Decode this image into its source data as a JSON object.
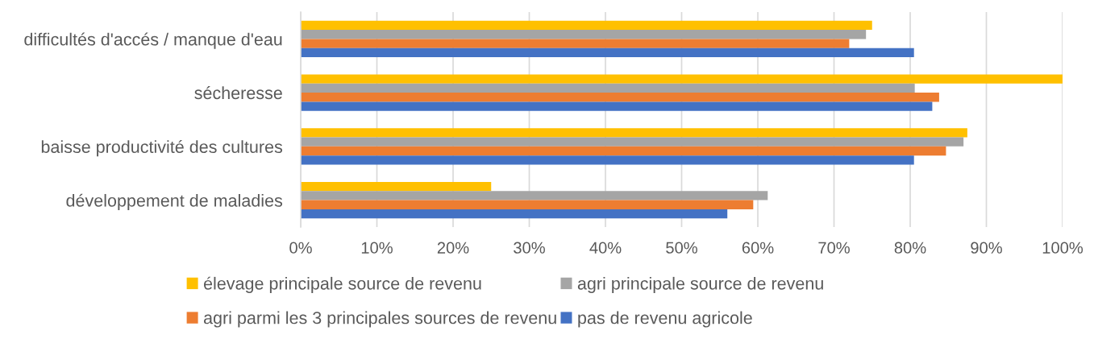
{
  "chart_data": {
    "type": "bar",
    "orientation": "horizontal",
    "categories": [
      "difficultés d'accés / manque d'eau",
      "sécheresse",
      "baisse productivité des cultures",
      "développement de maladies"
    ],
    "series": [
      {
        "name": "élevage principale source de revenu",
        "color": "#ffc000",
        "values": [
          75,
          100,
          87.5,
          25
        ]
      },
      {
        "name": "agri principale source de revenu",
        "color": "#a5a5a5",
        "values": [
          74.2,
          80.6,
          87,
          61.3
        ]
      },
      {
        "name": "agri parmi les 3 principales sources de revenu",
        "color": "#ed7d31",
        "values": [
          72,
          83.8,
          84.7,
          59.4
        ]
      },
      {
        "name": "pas de revenu agricole",
        "color": "#4472c4",
        "values": [
          80.5,
          82.9,
          80.5,
          56
        ]
      }
    ],
    "xlim": [
      0,
      100
    ],
    "xticks": [
      {
        "value": 0,
        "label": "0%"
      },
      {
        "value": 10,
        "label": "10%"
      },
      {
        "value": 20,
        "label": "20%"
      },
      {
        "value": 30,
        "label": "30%"
      },
      {
        "value": 40,
        "label": "40%"
      },
      {
        "value": 50,
        "label": "50%"
      },
      {
        "value": 60,
        "label": "60%"
      },
      {
        "value": 70,
        "label": "70%"
      },
      {
        "value": 80,
        "label": "80%"
      },
      {
        "value": 90,
        "label": "90%"
      },
      {
        "value": 100,
        "label": "100%"
      }
    ],
    "grid": "x",
    "legend": "bottom"
  }
}
